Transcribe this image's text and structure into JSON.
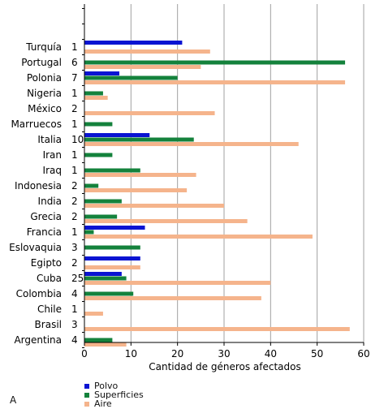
{
  "panel_label": "A",
  "chart_data": {
    "type": "bar",
    "orientation": "horizontal",
    "title": "",
    "xlabel": "Cantidad de géneros afectados",
    "ylabel": "",
    "xlim": [
      0,
      60
    ],
    "x_ticks": [
      0,
      10,
      20,
      30,
      40,
      50,
      60
    ],
    "grid": "vertical",
    "legend_position": "bottom-left",
    "categories": [
      "Turquía",
      "Portugal",
      "Polonia",
      "Nigeria",
      "México",
      "Marruecos",
      "Italia",
      "Iran",
      "Iraq",
      "Indonesia",
      "India",
      "Grecia",
      "Francia",
      "Eslovaquia",
      "Egipto",
      "Cuba",
      "Colombia",
      "Chile",
      "Brasil",
      "Argentina"
    ],
    "category_counts": [
      "1",
      "6",
      "7",
      "1",
      "2",
      "1",
      "10",
      "1",
      "1",
      "2",
      "2",
      "2",
      "1",
      "3",
      "2",
      "25",
      "4",
      "1",
      "3",
      "4"
    ],
    "series": [
      {
        "name": "Polvo",
        "color": "#0a14d2",
        "values": [
          21,
          0,
          7.5,
          0,
          0,
          0,
          14,
          0,
          0,
          0,
          0,
          0,
          13,
          0,
          12,
          8,
          0,
          0,
          0,
          0
        ]
      },
      {
        "name": "Superficies",
        "color": "#14823c",
        "values": [
          0,
          56,
          20,
          4,
          0,
          6,
          23.5,
          6,
          12,
          3,
          8,
          7,
          2,
          12,
          0,
          9,
          10.5,
          0,
          0,
          6
        ]
      },
      {
        "name": "Aire",
        "color": "#f5b48c",
        "values": [
          27,
          25,
          56,
          5,
          28,
          0,
          46,
          0,
          24,
          22,
          30,
          35,
          49,
          0,
          12,
          40,
          38,
          4,
          57,
          9
        ]
      }
    ]
  }
}
